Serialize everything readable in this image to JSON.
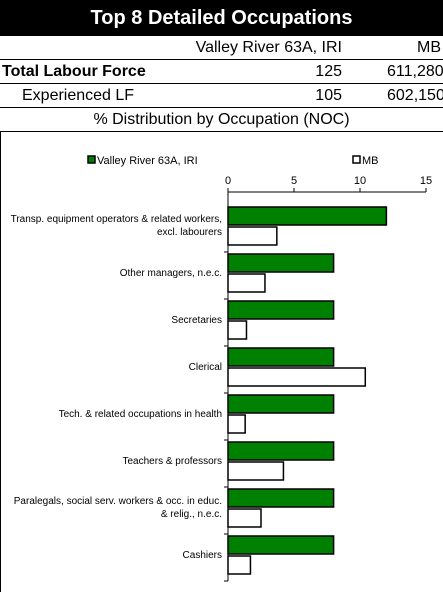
{
  "header": {
    "title": "Top 8 Detailed Occupations"
  },
  "table": {
    "columns": [
      "Valley River 63A, IRI",
      "MB"
    ],
    "rows": [
      {
        "label": "Total Labour Force",
        "values": [
          "125",
          "611,280"
        ]
      },
      {
        "label": "Experienced LF",
        "values": [
          "105",
          "602,150"
        ]
      }
    ],
    "section": "% Distribution by Occupation (NOC)"
  },
  "chart_data": {
    "type": "hbar",
    "categories": [
      "Transp. equipment operators & related workers, excl. labourers",
      "Other managers, n.e.c.",
      "Secretaries",
      "Clerical",
      "Tech. & related occupations in health",
      "Teachers & professors",
      "Paralegals, social serv. workers & occ. in educ. & relig., n.e.c.",
      "Cashiers"
    ],
    "series": [
      {
        "name": "Valley River 63A, IRI",
        "color": "#008000",
        "values": [
          12,
          8,
          8,
          8,
          8,
          8,
          8,
          8
        ]
      },
      {
        "name": "MB",
        "color": "#ffffff",
        "values": [
          3.7,
          2.8,
          1.4,
          10.4,
          1.3,
          4.2,
          2.5,
          1.7
        ]
      }
    ],
    "xlim": [
      0,
      15
    ],
    "xticks": [
      0,
      5,
      10,
      15
    ],
    "legend": "top"
  }
}
